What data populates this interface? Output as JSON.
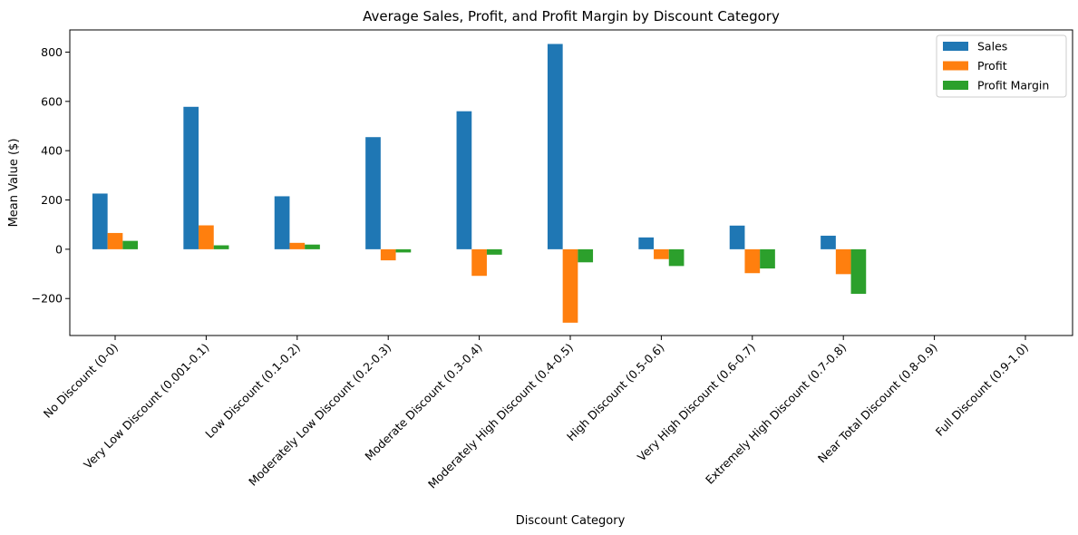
{
  "chart_data": {
    "type": "bar",
    "title": "Average Sales, Profit, and Profit Margin by Discount Category",
    "xlabel": "Discount Category",
    "ylabel": "Mean Value ($)",
    "ylim": [
      -350,
      890
    ],
    "yticks": [
      -200,
      0,
      200,
      400,
      600,
      800
    ],
    "grid": false,
    "legend_position": "top-right",
    "categories": [
      "No Discount (0-0)",
      "Very Low Discount (0.001-0.1)",
      "Low Discount (0.1-0.2)",
      "Moderately Low Discount (0.2-0.3)",
      "Moderate Discount (0.3-0.4)",
      "Moderately High Discount (0.4-0.5)",
      "High Discount (0.5-0.6)",
      "Very High Discount (0.6-0.7)",
      "Extremely High Discount (0.7-0.8)",
      "Near Total Discount (0.8-0.9)",
      "Full Discount (0.9-1.0)"
    ],
    "series": [
      {
        "name": "Sales",
        "color": "#1f77b4",
        "values": [
          226,
          578,
          215,
          455,
          560,
          833,
          48,
          96,
          55,
          null,
          null
        ]
      },
      {
        "name": "Profit",
        "color": "#ff7f0e",
        "values": [
          66,
          97,
          26,
          -45,
          -108,
          -298,
          -40,
          -97,
          -101,
          null,
          null
        ]
      },
      {
        "name": "Profit Margin",
        "color": "#2ca02c",
        "values": [
          34,
          16,
          19,
          -13,
          -22,
          -53,
          -68,
          -78,
          -181,
          null,
          null
        ]
      }
    ]
  }
}
